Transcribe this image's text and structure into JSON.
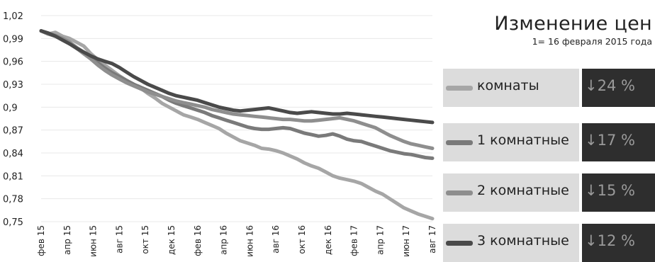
{
  "chart_data": {
    "type": "line",
    "title": "Изменение цен",
    "subtitle": "1= 16 февраля 2015 года",
    "y_ticks": [
      "1,02",
      "0,99",
      "0,96",
      "0,93",
      "0,9",
      "0,87",
      "0,84",
      "0,81",
      "0,78",
      "0,75"
    ],
    "ylim": [
      0.75,
      1.02
    ],
    "x_ticks": [
      "фев 15",
      "апр 15",
      "июн 15",
      "авг 15",
      "окт 15",
      "дек 15",
      "фев 16",
      "апр 16",
      "июн 16",
      "авг 16",
      "окт 16",
      "дек 16",
      "фев 17",
      "апр 17",
      "июн 17",
      "авг 17"
    ],
    "grid": true,
    "series": [
      {
        "name": "комнаты",
        "color": "#a6a6a6",
        "change": "↓24 %",
        "values": [
          1.0,
          0.996,
          0.998,
          0.993,
          0.99,
          0.985,
          0.98,
          0.97,
          0.962,
          0.955,
          0.948,
          0.941,
          0.935,
          0.93,
          0.925,
          0.918,
          0.912,
          0.905,
          0.9,
          0.895,
          0.89,
          0.887,
          0.884,
          0.88,
          0.876,
          0.872,
          0.866,
          0.861,
          0.856,
          0.853,
          0.85,
          0.846,
          0.845,
          0.843,
          0.84,
          0.836,
          0.832,
          0.827,
          0.823,
          0.82,
          0.815,
          0.81,
          0.807,
          0.805,
          0.803,
          0.8,
          0.795,
          0.79,
          0.786,
          0.78,
          0.774,
          0.768,
          0.764,
          0.76,
          0.757,
          0.754
        ]
      },
      {
        "name": "1 комнатные",
        "color": "#7a7a7a",
        "change": "↓17 %",
        "values": [
          1.0,
          0.996,
          0.993,
          0.99,
          0.985,
          0.978,
          0.972,
          0.965,
          0.958,
          0.951,
          0.945,
          0.94,
          0.935,
          0.93,
          0.926,
          0.922,
          0.918,
          0.914,
          0.909,
          0.905,
          0.902,
          0.899,
          0.896,
          0.893,
          0.889,
          0.886,
          0.883,
          0.88,
          0.877,
          0.874,
          0.872,
          0.871,
          0.871,
          0.872,
          0.873,
          0.872,
          0.869,
          0.866,
          0.864,
          0.862,
          0.863,
          0.865,
          0.862,
          0.858,
          0.856,
          0.855,
          0.852,
          0.849,
          0.846,
          0.843,
          0.841,
          0.839,
          0.838,
          0.836,
          0.834,
          0.833
        ]
      },
      {
        "name": "2 комнатные",
        "color": "#8e8e8e",
        "change": "↓15 %",
        "values": [
          1.0,
          0.997,
          0.994,
          0.99,
          0.985,
          0.977,
          0.97,
          0.963,
          0.955,
          0.948,
          0.942,
          0.937,
          0.932,
          0.928,
          0.924,
          0.92,
          0.917,
          0.914,
          0.911,
          0.908,
          0.906,
          0.904,
          0.902,
          0.9,
          0.897,
          0.895,
          0.893,
          0.891,
          0.89,
          0.889,
          0.888,
          0.887,
          0.886,
          0.885,
          0.884,
          0.884,
          0.883,
          0.882,
          0.882,
          0.883,
          0.884,
          0.885,
          0.886,
          0.884,
          0.882,
          0.879,
          0.876,
          0.873,
          0.868,
          0.863,
          0.859,
          0.855,
          0.852,
          0.85,
          0.848,
          0.846
        ]
      },
      {
        "name": "3 комнатные",
        "color": "#4a4a4a",
        "change": "↓12 %",
        "values": [
          1.0,
          0.997,
          0.993,
          0.988,
          0.983,
          0.977,
          0.972,
          0.967,
          0.963,
          0.96,
          0.957,
          0.952,
          0.946,
          0.94,
          0.935,
          0.93,
          0.926,
          0.922,
          0.918,
          0.915,
          0.913,
          0.911,
          0.909,
          0.906,
          0.903,
          0.9,
          0.898,
          0.896,
          0.895,
          0.896,
          0.897,
          0.898,
          0.899,
          0.897,
          0.895,
          0.893,
          0.892,
          0.893,
          0.894,
          0.893,
          0.892,
          0.891,
          0.891,
          0.892,
          0.891,
          0.89,
          0.889,
          0.888,
          0.887,
          0.886,
          0.885,
          0.884,
          0.883,
          0.882,
          0.881,
          0.88
        ]
      }
    ]
  }
}
